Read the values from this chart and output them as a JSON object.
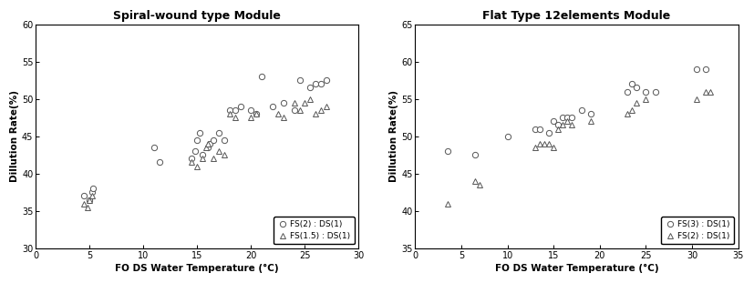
{
  "left": {
    "title": "Spiral-wound type Module",
    "xlabel": "FO DS Water Temperature (°C)",
    "ylabel": "Dillution Rate(%)",
    "xlim": [
      0,
      30
    ],
    "ylim": [
      30,
      60
    ],
    "yticks": [
      30,
      35,
      40,
      45,
      50,
      55,
      60
    ],
    "xticks": [
      0,
      5,
      10,
      15,
      20,
      25,
      30
    ],
    "series1_label": "FS(2) : DS(1)",
    "series2_label": "FS(1.5) : DS(1)",
    "series1_x": [
      4.5,
      5.0,
      5.2,
      5.3,
      11.0,
      11.5,
      14.5,
      14.8,
      15.0,
      15.2,
      15.5,
      16.0,
      16.2,
      16.5,
      17.0,
      17.5,
      18.0,
      18.5,
      19.0,
      20.0,
      20.5,
      21.0,
      22.0,
      23.0,
      24.0,
      24.5,
      25.5,
      26.0,
      26.5,
      27.0
    ],
    "series1_y": [
      37.0,
      36.5,
      37.5,
      38.0,
      43.5,
      41.5,
      42.0,
      43.0,
      44.5,
      45.5,
      42.5,
      43.5,
      44.0,
      44.5,
      45.5,
      44.5,
      48.5,
      48.5,
      49.0,
      48.5,
      48.0,
      53.0,
      49.0,
      49.5,
      48.5,
      52.5,
      51.5,
      52.0,
      52.0,
      52.5
    ],
    "series2_x": [
      4.5,
      4.8,
      5.0,
      5.2,
      14.5,
      15.0,
      15.5,
      15.8,
      16.0,
      16.5,
      17.0,
      17.5,
      18.0,
      18.5,
      20.0,
      20.5,
      22.5,
      23.0,
      24.0,
      24.5,
      25.0,
      25.5,
      26.0,
      26.5,
      27.0
    ],
    "series2_y": [
      36.0,
      35.5,
      36.5,
      37.0,
      41.5,
      41.0,
      42.0,
      43.5,
      44.0,
      42.0,
      43.0,
      42.5,
      48.0,
      47.5,
      47.5,
      48.0,
      48.0,
      47.5,
      49.5,
      48.5,
      49.5,
      50.0,
      48.0,
      48.5,
      49.0
    ]
  },
  "right": {
    "title": "Flat Type 12elements Module",
    "xlabel": "FO DS Water Temperature (°C)",
    "ylabel": "Dillution Rate(%)",
    "xlim": [
      0,
      35
    ],
    "ylim": [
      35,
      65
    ],
    "yticks": [
      35,
      40,
      45,
      50,
      55,
      60,
      65
    ],
    "xticks": [
      0,
      5,
      10,
      15,
      20,
      25,
      30,
      35
    ],
    "series1_label": "FS(3) : DS(1)",
    "series2_label": "FS(2) : DS(1)",
    "series1_x": [
      3.5,
      6.5,
      10.0,
      13.0,
      13.5,
      14.5,
      15.0,
      15.5,
      16.0,
      16.5,
      17.0,
      18.0,
      19.0,
      23.0,
      23.5,
      24.0,
      25.0,
      26.0,
      30.5,
      31.5
    ],
    "series1_y": [
      48.0,
      47.5,
      50.0,
      51.0,
      51.0,
      50.5,
      52.0,
      51.5,
      52.5,
      52.5,
      52.5,
      53.5,
      53.0,
      56.0,
      57.0,
      56.5,
      56.0,
      56.0,
      59.0,
      59.0
    ],
    "series2_x": [
      3.5,
      6.5,
      7.0,
      13.0,
      13.5,
      14.0,
      14.5,
      15.0,
      15.5,
      16.0,
      16.5,
      17.0,
      19.0,
      23.0,
      23.5,
      24.0,
      25.0,
      30.5,
      31.5,
      32.0
    ],
    "series2_y": [
      41.0,
      44.0,
      43.5,
      48.5,
      49.0,
      49.0,
      49.0,
      48.5,
      51.0,
      51.5,
      52.0,
      51.5,
      52.0,
      53.0,
      53.5,
      54.5,
      55.0,
      55.0,
      56.0,
      56.0
    ]
  },
  "marker_size": 4.5,
  "marker_color": "#555555",
  "marker_facecolor": "white",
  "marker_linewidth": 0.7,
  "title_fontsize": 9,
  "label_fontsize": 7.5,
  "tick_fontsize": 7,
  "legend_fontsize": 6.5,
  "fig_width": 8.27,
  "fig_height": 3.11,
  "dpi": 100
}
